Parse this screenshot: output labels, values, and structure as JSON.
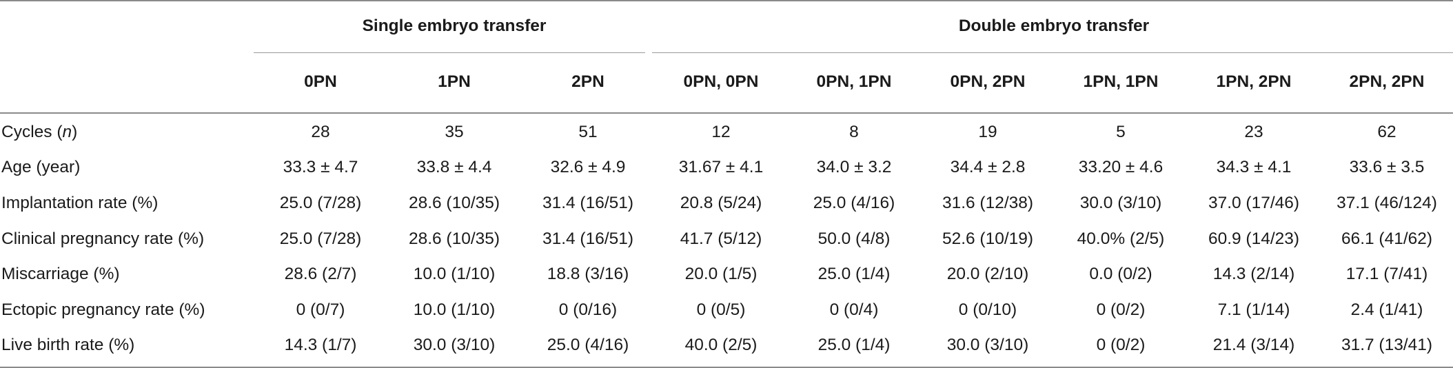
{
  "table": {
    "group_headers": [
      {
        "label": "",
        "span": 1
      },
      {
        "label": "Single embryo transfer",
        "span": 3
      },
      {
        "label": "Double embryo transfer",
        "span": 6
      }
    ],
    "columns": [
      "",
      "0PN",
      "1PN",
      "2PN",
      "0PN, 0PN",
      "0PN, 1PN",
      "0PN, 2PN",
      "1PN, 1PN",
      "1PN, 2PN",
      "2PN, 2PN"
    ],
    "rows": [
      {
        "label_text": "Cycles (",
        "label_italic": "n",
        "label_after": ")",
        "values": [
          "28",
          "35",
          "51",
          "12",
          "8",
          "19",
          "5",
          "23",
          "62"
        ]
      },
      {
        "label_text": "Age (year)",
        "label_italic": "",
        "label_after": "",
        "values": [
          "33.3 ± 4.7",
          "33.8 ± 4.4",
          "32.6 ± 4.9",
          "31.67 ± 4.1",
          "34.0 ± 3.2",
          "34.4 ± 2.8",
          "33.20 ± 4.6",
          "34.3 ± 4.1",
          "33.6 ± 3.5"
        ]
      },
      {
        "label_text": "Implantation rate (%)",
        "label_italic": "",
        "label_after": "",
        "values": [
          "25.0 (7/28)",
          "28.6 (10/35)",
          "31.4 (16/51)",
          "20.8 (5/24)",
          "25.0 (4/16)",
          "31.6 (12/38)",
          "30.0 (3/10)",
          "37.0 (17/46)",
          "37.1 (46/124)"
        ]
      },
      {
        "label_text": "Clinical pregnancy rate (%)",
        "label_italic": "",
        "label_after": "",
        "values": [
          "25.0 (7/28)",
          "28.6 (10/35)",
          "31.4 (16/51)",
          "41.7 (5/12)",
          "50.0 (4/8)",
          "52.6 (10/19)",
          "40.0% (2/5)",
          "60.9 (14/23)",
          "66.1 (41/62)"
        ]
      },
      {
        "label_text": "Miscarriage (%)",
        "label_italic": "",
        "label_after": "",
        "values": [
          "28.6 (2/7)",
          "10.0 (1/10)",
          "18.8 (3/16)",
          "20.0 (1/5)",
          "25.0 (1/4)",
          "20.0 (2/10)",
          "0.0 (0/2)",
          "14.3 (2/14)",
          "17.1 (7/41)"
        ]
      },
      {
        "label_text": "Ectopic pregnancy rate (%)",
        "label_italic": "",
        "label_after": "",
        "values": [
          "0 (0/7)",
          "10.0 (1/10)",
          "0 (0/16)",
          "0 (0/5)",
          "0 (0/4)",
          "0 (0/10)",
          "0 (0/2)",
          "7.1 (1/14)",
          "2.4 (1/41)"
        ]
      },
      {
        "label_text": "Live birth rate (%)",
        "label_italic": "",
        "label_after": "",
        "values": [
          "14.3 (1/7)",
          "30.0 (3/10)",
          "25.0 (4/16)",
          "40.0 (2/5)",
          "25.0 (1/4)",
          "30.0 (3/10)",
          "0 (0/2)",
          "21.4 (3/14)",
          "31.7 (13/41)"
        ]
      }
    ]
  }
}
